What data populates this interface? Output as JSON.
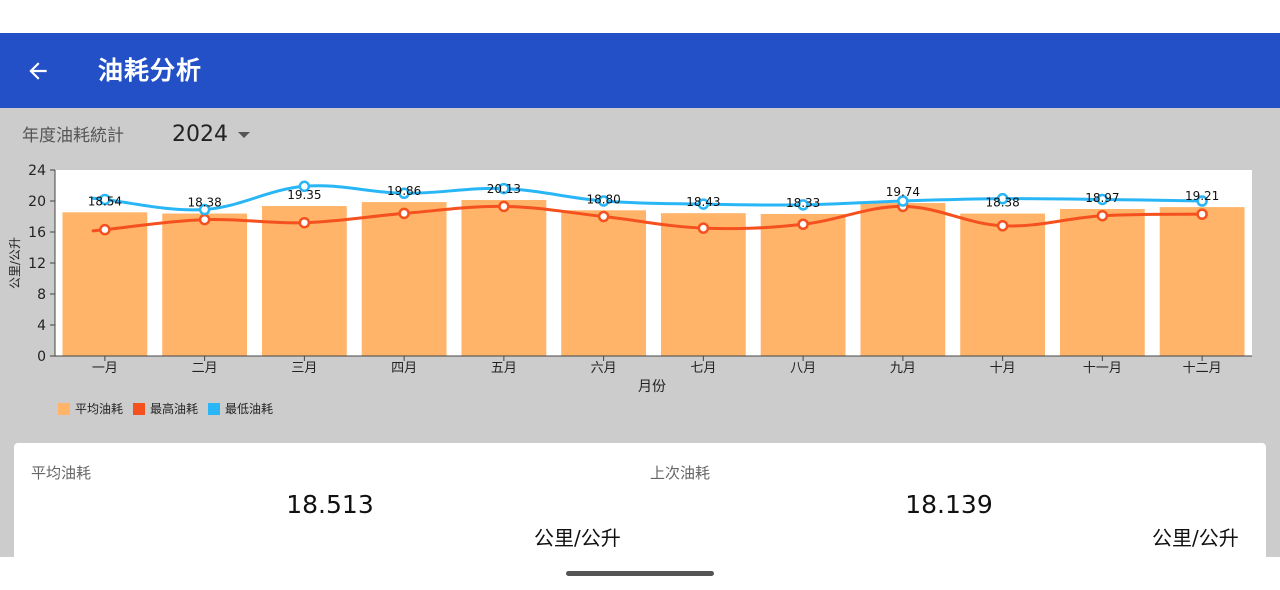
{
  "appbar": {
    "title": "油耗分析",
    "back_icon": "arrow-left-icon"
  },
  "filter": {
    "label": "年度油耗統計",
    "year": "2024"
  },
  "chart_data": {
    "type": "bar",
    "categories": [
      "一月",
      "二月",
      "三月",
      "四月",
      "五月",
      "六月",
      "七月",
      "八月",
      "九月",
      "十月",
      "十一月",
      "十二月"
    ],
    "series": [
      {
        "name": "平均油耗",
        "type": "bar",
        "color": "#ffb469",
        "values": [
          18.54,
          18.38,
          19.35,
          19.86,
          20.13,
          18.8,
          18.43,
          18.33,
          19.74,
          18.38,
          18.97,
          19.21
        ]
      },
      {
        "name": "最高油耗",
        "type": "line",
        "color": "#f4511e",
        "values": [
          16.3,
          17.6,
          17.2,
          18.4,
          19.3,
          18.0,
          16.5,
          17.0,
          19.3,
          16.8,
          18.1,
          18.3
        ]
      },
      {
        "name": "最低油耗",
        "type": "line",
        "color": "#29b6f6",
        "values": [
          20.2,
          18.9,
          21.9,
          21.0,
          21.6,
          20.0,
          19.6,
          19.5,
          20.0,
          20.3,
          20.2,
          20.0
        ]
      }
    ],
    "data_labels": [
      "18.54",
      "18.38",
      "19.35",
      "19.86",
      "20.13",
      "18.80",
      "18.43",
      "18.33",
      "19.74",
      "18.38",
      "18.97",
      "19.21"
    ],
    "y_ticks": [
      "0",
      "4",
      "8",
      "12",
      "16",
      "20",
      "24"
    ],
    "ylim": [
      0,
      24
    ],
    "xlabel": "月份",
    "ylabel": "公里/公升",
    "legend_position": "bottom-left",
    "grid": false
  },
  "summary": {
    "avg": {
      "label": "平均油耗",
      "value": "18.513",
      "unit": "公里/公升"
    },
    "last": {
      "label": "上次油耗",
      "value": "18.139",
      "unit": "公里/公升"
    }
  }
}
